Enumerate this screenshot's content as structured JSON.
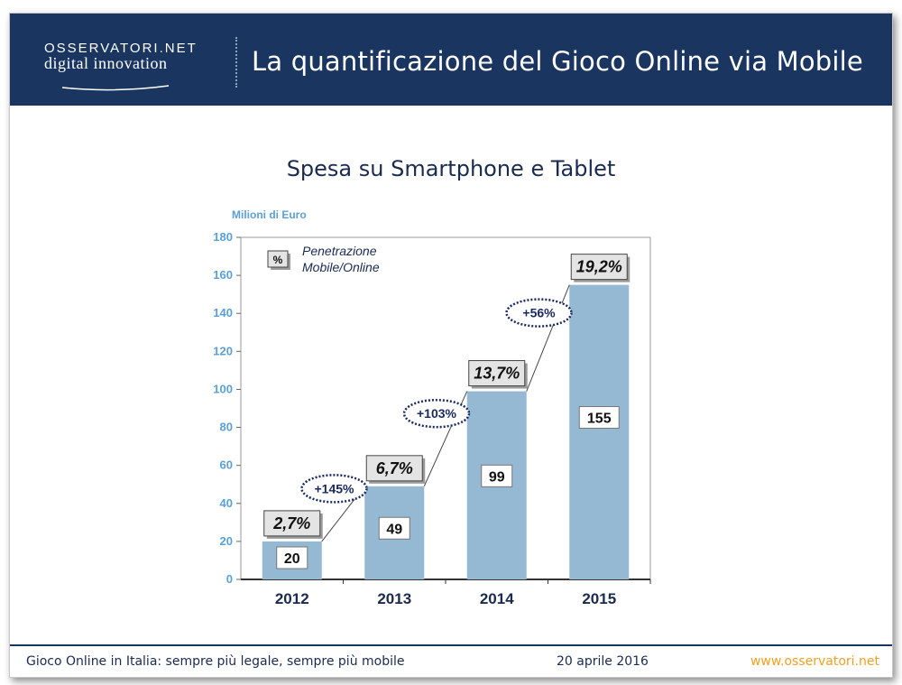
{
  "header": {
    "logo_line1": "OSSERVATORI.NET",
    "logo_line2": "digital innovation",
    "title": "La quantificazione del Gioco Online via Mobile"
  },
  "colors": {
    "header_bg": "#1a3560",
    "bar": "#95b8d3",
    "axis_text": "#5aa0d8",
    "footer_url": "#f0a020"
  },
  "chart_data": {
    "type": "bar",
    "title": "Spesa su Smartphone e Tablet",
    "ylabel": "Milioni di Euro",
    "xlabel": "",
    "categories": [
      "2012",
      "2013",
      "2014",
      "2015"
    ],
    "values": [
      20,
      49,
      99,
      155
    ],
    "value_labels": [
      "20",
      "49",
      "99",
      "155"
    ],
    "ylim": [
      0,
      180
    ],
    "yticks": [
      0,
      20,
      40,
      60,
      80,
      100,
      120,
      140,
      160,
      180
    ],
    "grid": false,
    "legend": {
      "symbol": "%",
      "text_line1": "Penetrazione",
      "text_line2": "Mobile/Online",
      "position": "top-left"
    },
    "penetration_labels": [
      "2,7%",
      "6,7%",
      "13,7%",
      "19,2%"
    ],
    "growth_labels": [
      "+145%",
      "+103%",
      "+56%"
    ]
  },
  "footer": {
    "left": "Gioco Online in Italia: sempre più legale, sempre più mobile",
    "date": "20 aprile 2016",
    "url": "www.osservatori.net"
  }
}
